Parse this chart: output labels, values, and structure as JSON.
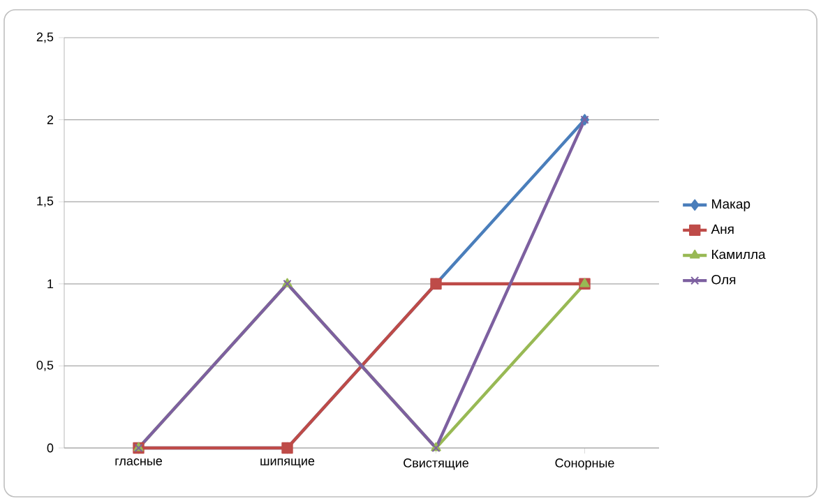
{
  "chart_data": {
    "type": "line",
    "categories": [
      "гласные",
      "шипящие",
      "Свистящие",
      "Сонорные"
    ],
    "series": [
      {
        "name": "Макар",
        "color": "#4a7ebb",
        "marker": "diamond",
        "values": [
          0,
          0,
          1,
          2
        ]
      },
      {
        "name": "Аня",
        "color": "#be4b48",
        "marker": "square",
        "values": [
          0,
          0,
          1,
          1
        ]
      },
      {
        "name": "Камилла",
        "color": "#98b954",
        "marker": "triangle",
        "values": [
          0,
          1,
          0,
          1
        ]
      },
      {
        "name": "Оля",
        "color": "#7d60a0",
        "marker": "cross",
        "values": [
          0,
          1,
          0,
          2
        ]
      }
    ],
    "ylim": [
      0,
      2.5
    ],
    "yticks": [
      {
        "value": 0,
        "label": "0"
      },
      {
        "value": 0.5,
        "label": "0,5"
      },
      {
        "value": 1,
        "label": "1"
      },
      {
        "value": 1.5,
        "label": "1,5"
      },
      {
        "value": 2,
        "label": "2"
      },
      {
        "value": 2.5,
        "label": "2,5"
      }
    ],
    "grid": "y",
    "legend": "right",
    "line_style": "solid"
  }
}
